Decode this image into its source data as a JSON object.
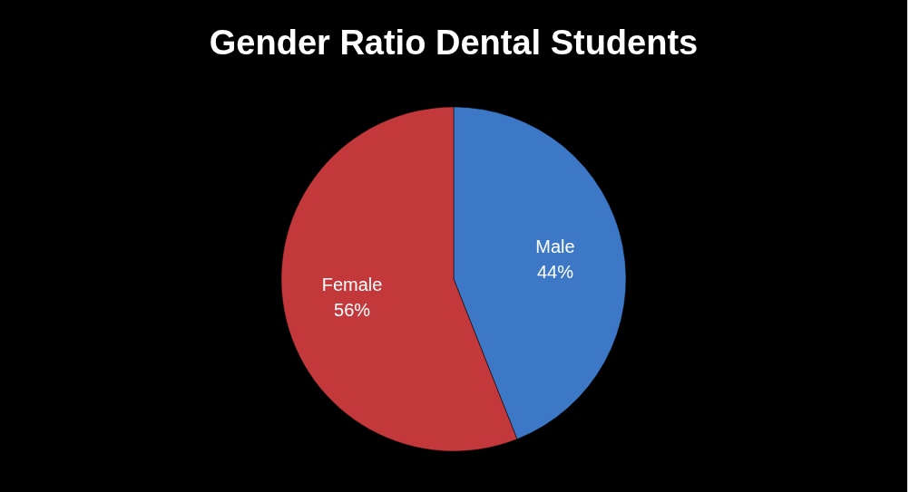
{
  "chart_data": {
    "type": "pie",
    "title": "Gender Ratio Dental Students",
    "categories": [
      "Male",
      "Female"
    ],
    "values": [
      44,
      56
    ],
    "value_labels": [
      "44%",
      "56%"
    ],
    "colors": [
      "#3c78c6",
      "#c3383a"
    ]
  }
}
